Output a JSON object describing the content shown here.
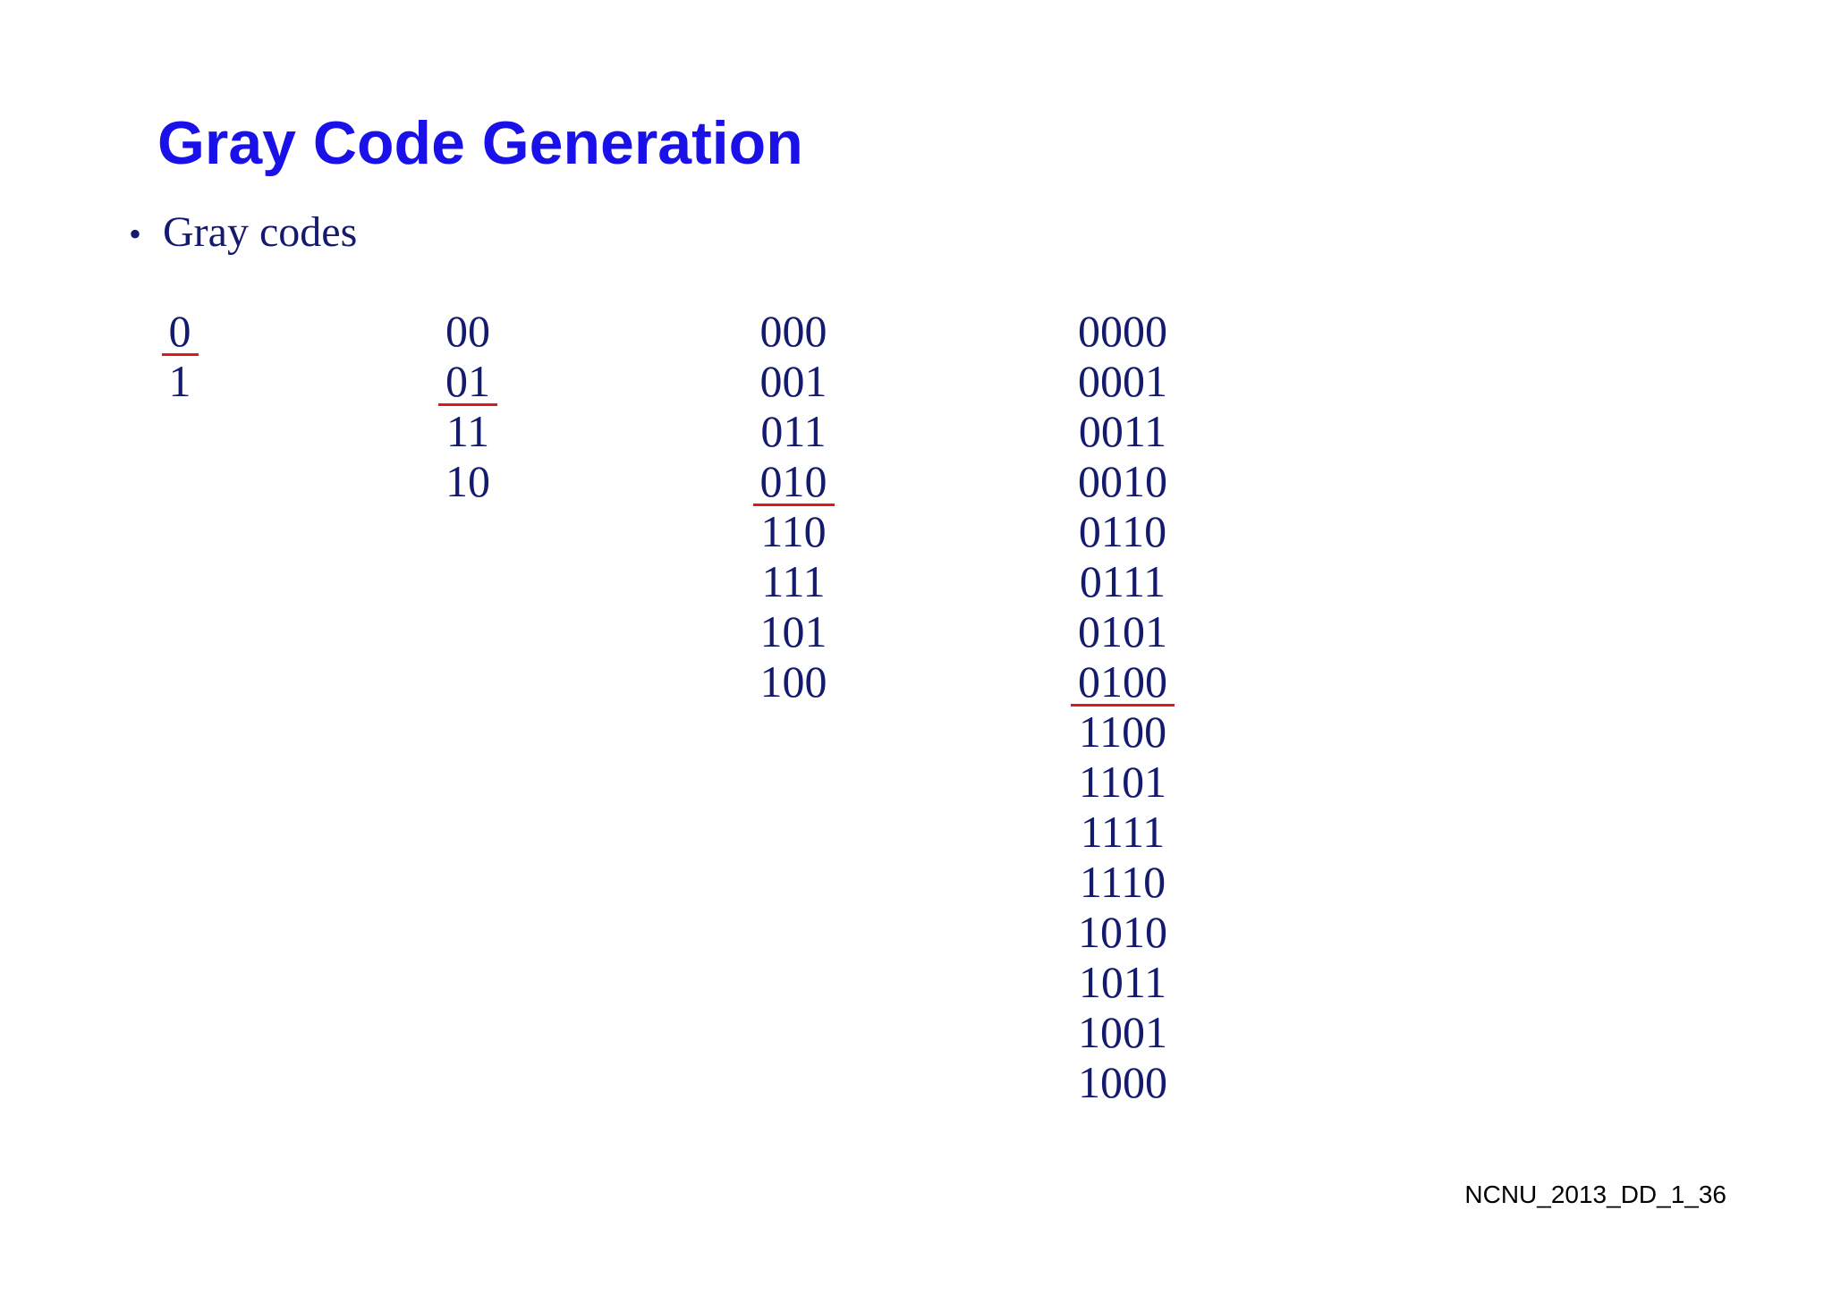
{
  "title": "Gray Code Generation",
  "bullet": {
    "marker": "•",
    "text": "Gray codes"
  },
  "columns": [
    {
      "codes": [
        "0",
        "1"
      ],
      "mirror_after": 0
    },
    {
      "codes": [
        "00",
        "01",
        "11",
        "10"
      ],
      "mirror_after": 1
    },
    {
      "codes": [
        "000",
        "001",
        "011",
        "010",
        "110",
        "111",
        "101",
        "100"
      ],
      "mirror_after": 3
    },
    {
      "codes": [
        "0000",
        "0001",
        "0011",
        "0010",
        "0110",
        "0111",
        "0101",
        "0100",
        "1100",
        "1101",
        "1111",
        "1110",
        "1010",
        "1011",
        "1001",
        "1000"
      ],
      "mirror_after": 7
    }
  ],
  "footer": "NCNU_2013_DD_1_36",
  "colors": {
    "title": "#1a10e8",
    "body_text": "#141a6e",
    "mirror_line": "#e01818"
  }
}
